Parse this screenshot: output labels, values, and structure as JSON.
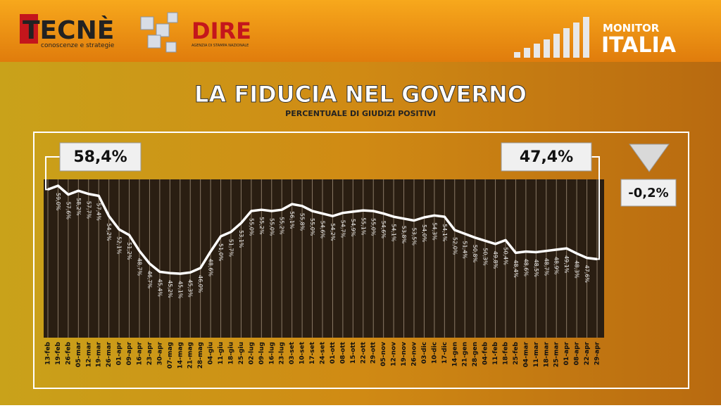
{
  "header": {
    "brand": "TECNÈ",
    "brand_tagline": "conoscenze e strategie",
    "agency": "DIRE",
    "agency_tagline": "AGENZIA DI STAMPA NAZIONALE",
    "program_top": "MONITOR",
    "program_bottom": "ITALIA"
  },
  "chart_data": {
    "type": "line",
    "title": "LA FIDUCIA NEL GOVERNO",
    "subtitle": "PERCENTUALE DI GIUDIZI POSITIVI",
    "categories": [
      "13-feb",
      "19-feb",
      "26-feb",
      "05-mar",
      "12-mar",
      "19-mar",
      "26-mar",
      "01-apr",
      "09-apr",
      "16-apr",
      "23-apr",
      "30-apr",
      "07-mag",
      "14-mag",
      "21-mag",
      "28-mag",
      "04-giu",
      "11-giu",
      "18-giu",
      "25-giu",
      "02-lug",
      "09-lug",
      "16-lug",
      "23-lug",
      "03-set",
      "10-set",
      "17-set",
      "24-set",
      "01-ott",
      "08-ott",
      "15-ott",
      "22-ott",
      "29-ott",
      "05-nov",
      "12-nov",
      "19-nov",
      "26-nov",
      "03-dic",
      "10-dic",
      "17-dic",
      "14-gen",
      "21-gen",
      "28-gen",
      "04-feb",
      "11-feb",
      "18-feb",
      "25-feb",
      "04-mar",
      "11-mar",
      "18-mar",
      "25-mar",
      "01-apr",
      "08-apr",
      "22-apr",
      "29-apr"
    ],
    "values": [
      58.4,
      59.0,
      57.6,
      58.2,
      57.7,
      57.4,
      54.2,
      52.1,
      51.2,
      48.7,
      46.7,
      45.4,
      45.2,
      45.1,
      45.3,
      46.0,
      48.6,
      51.0,
      51.7,
      53.1,
      55.0,
      55.2,
      55.0,
      55.2,
      56.1,
      55.8,
      55.0,
      54.6,
      54.2,
      54.7,
      54.9,
      55.1,
      55.0,
      54.6,
      54.1,
      53.8,
      53.5,
      54.0,
      54.3,
      54.1,
      52.0,
      51.4,
      50.8,
      50.3,
      49.8,
      50.4,
      48.4,
      48.6,
      48.5,
      48.7,
      48.9,
      49.1,
      48.3,
      47.6,
      47.4
    ],
    "value_labels": [
      "58,4%",
      "59,0%",
      "57,6%",
      "58,2%",
      "57,7%",
      "57,4%",
      "54,2%",
      "52,1%",
      "51,2%",
      "48,7%",
      "46,7%",
      "45,4%",
      "45,2%",
      "45,1%",
      "45,3%",
      "46,0%",
      "48,6%",
      "51,0%",
      "51,7%",
      "53,1%",
      "55,0%",
      "55,2%",
      "55,0%",
      "55,2%",
      "56,1%",
      "55,8%",
      "55,0%",
      "54,6%",
      "54,2%",
      "54,7%",
      "54,9%",
      "55,1%",
      "55,0%",
      "54,6%",
      "54,1%",
      "53,8%",
      "53,5%",
      "54,0%",
      "54,3%",
      "54,1%",
      "52,0%",
      "51,4%",
      "50,8%",
      "50,3%",
      "49,8%",
      "50,4%",
      "48,4%",
      "48,6%",
      "48,5%",
      "48,7%",
      "48,9%",
      "49,1%",
      "48,3%",
      "47,6%",
      "47,4%"
    ],
    "color": "#ffffff",
    "ylim": [
      35,
      60
    ],
    "change_label": "-0,2%"
  }
}
